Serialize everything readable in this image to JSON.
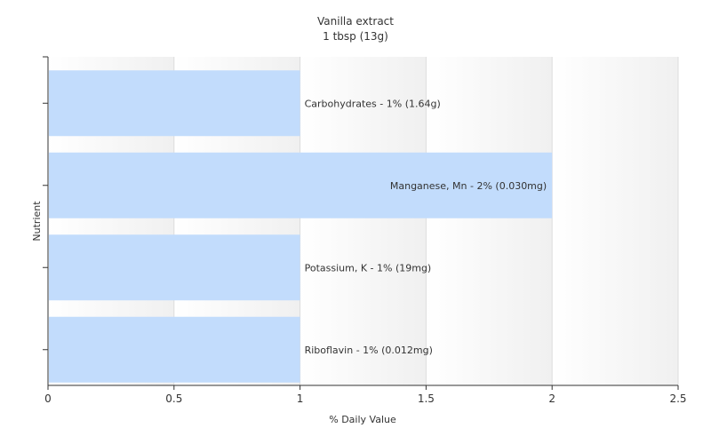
{
  "chart_data": {
    "type": "bar",
    "orientation": "horizontal",
    "title": "Vanilla extract",
    "subtitle": "1 tbsp (13g)",
    "xlabel": "% Daily Value",
    "ylabel": "Nutrient",
    "xlim": [
      0,
      2.5
    ],
    "xticks": [
      "0",
      "0.5",
      "1",
      "1.5",
      "2",
      "2.5"
    ],
    "grid": true,
    "legend": "none",
    "bar_color": "#c2dcfc",
    "bars": [
      {
        "label": "Carbohydrates - 1% (1.64g)",
        "value": 1
      },
      {
        "label": "Manganese, Mn - 2% (0.030mg)",
        "value": 2
      },
      {
        "label": "Potassium, K - 1% (19mg)",
        "value": 1
      },
      {
        "label": "Riboflavin - 1% (0.012mg)",
        "value": 1
      }
    ]
  }
}
